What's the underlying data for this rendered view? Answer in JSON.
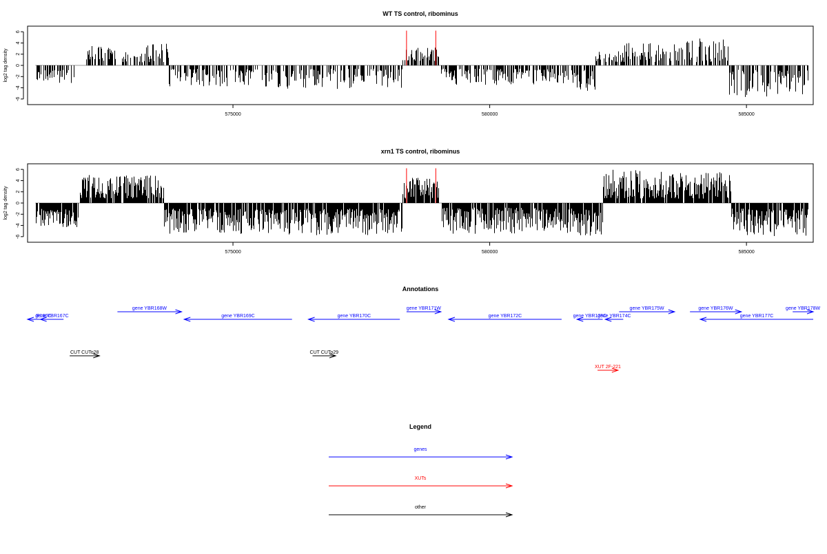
{
  "chart_data": [
    {
      "type": "bar",
      "title": "WT TS control, ribominus",
      "ylabel": "log2 tag density",
      "xlim": [
        571000,
        586300
      ],
      "ylim": [
        -7,
        7
      ],
      "x_ticks": [
        575000,
        580000,
        585000
      ],
      "x_tick_labels": [
        "575000",
        "580000",
        "585000"
      ],
      "y_ticks": [
        -6,
        -4,
        -2,
        0,
        2,
        4,
        6
      ],
      "y_tick_labels": [
        "-6",
        "-4",
        "-2",
        "0",
        "2",
        "4",
        "6"
      ],
      "colors": {
        "bars": "#000000",
        "highlight": "#ff0000",
        "baseline": "#999999"
      },
      "segments": [
        {
          "start": 571150,
          "end": 571900,
          "min": -3.2,
          "max": -0.8
        },
        {
          "start": 572100,
          "end": 572700,
          "min": 0.6,
          "max": 3.5
        },
        {
          "start": 572700,
          "end": 573300,
          "min": 0.5,
          "max": 2.5
        },
        {
          "start": 573300,
          "end": 573750,
          "min": 0.6,
          "max": 4.0
        },
        {
          "start": 573750,
          "end": 575800,
          "min": -3.8,
          "max": -0.6
        },
        {
          "start": 575800,
          "end": 578300,
          "min": -4.2,
          "max": -0.6
        },
        {
          "start": 578300,
          "end": 579000,
          "min": 0.6,
          "max": 3.2
        },
        {
          "start": 579050,
          "end": 581300,
          "min": -3.5,
          "max": -0.6
        },
        {
          "start": 581300,
          "end": 582050,
          "min": -4.8,
          "max": -0.8
        },
        {
          "start": 582050,
          "end": 582600,
          "min": 0.6,
          "max": 2.6
        },
        {
          "start": 582600,
          "end": 583800,
          "min": 0.6,
          "max": 4.0
        },
        {
          "start": 583800,
          "end": 584650,
          "min": 0.6,
          "max": 4.8
        },
        {
          "start": 584650,
          "end": 586200,
          "min": -5.8,
          "max": -0.8
        }
      ],
      "highlight_bars": [
        {
          "x": 578380,
          "y": 6.2
        },
        {
          "x": 578950,
          "y": 6.2
        }
      ]
    },
    {
      "type": "bar",
      "title": "xrn1 TS control, ribominus",
      "ylabel": "log2 tag density",
      "xlim": [
        571000,
        586300
      ],
      "ylim": [
        -7,
        7
      ],
      "x_ticks": [
        575000,
        580000,
        585000
      ],
      "x_tick_labels": [
        "575000",
        "580000",
        "585000"
      ],
      "y_ticks": [
        -6,
        -4,
        -2,
        0,
        2,
        4,
        6
      ],
      "y_tick_labels": [
        "-6",
        "-4",
        "-2",
        "0",
        "2",
        "4",
        "6"
      ],
      "colors": {
        "bars": "#000000",
        "highlight": "#ff0000",
        "baseline": "#999999"
      },
      "segments": [
        {
          "start": 571150,
          "end": 572000,
          "min": -4.5,
          "max": -1.0
        },
        {
          "start": 572000,
          "end": 573650,
          "min": 0.8,
          "max": 5.0
        },
        {
          "start": 573650,
          "end": 576000,
          "min": -5.5,
          "max": -1.0
        },
        {
          "start": 576000,
          "end": 578300,
          "min": -5.8,
          "max": -1.0
        },
        {
          "start": 578300,
          "end": 579000,
          "min": 0.8,
          "max": 4.5
        },
        {
          "start": 579050,
          "end": 581700,
          "min": -5.5,
          "max": -0.8
        },
        {
          "start": 581700,
          "end": 582200,
          "min": -6.0,
          "max": -1.0
        },
        {
          "start": 582200,
          "end": 583500,
          "min": 0.8,
          "max": 6.0
        },
        {
          "start": 583500,
          "end": 584700,
          "min": 0.8,
          "max": 5.5
        },
        {
          "start": 584700,
          "end": 586200,
          "min": -6.0,
          "max": -1.0
        }
      ],
      "highlight_bars": [
        {
          "x": 578380,
          "y": 6.2
        },
        {
          "x": 578950,
          "y": 6.2
        }
      ]
    },
    {
      "type": "annotation-track",
      "title": "Annotations",
      "xlim": [
        571000,
        586300
      ],
      "colors": {
        "gene": "#0000ff",
        "xut": "#ff0000",
        "other": "#000000"
      },
      "features": [
        {
          "label": "R166C",
          "kind": "gene",
          "start": 571000,
          "end": 571630,
          "strand": "-",
          "row": 1
        },
        {
          "label": "gene YBR167C",
          "kind": "gene",
          "start": 571250,
          "end": 571700,
          "strand": "-",
          "row": 1
        },
        {
          "label": "gene YBR168W",
          "kind": "gene",
          "start": 572750,
          "end": 574000,
          "strand": "+",
          "row": 0
        },
        {
          "label": "gene YBR169C",
          "kind": "gene",
          "start": 574050,
          "end": 576150,
          "strand": "-",
          "row": 1
        },
        {
          "label": "gene YBR170C",
          "kind": "gene",
          "start": 576470,
          "end": 578250,
          "strand": "-",
          "row": 1
        },
        {
          "label": "gene YBR171W",
          "kind": "gene",
          "start": 578380,
          "end": 579050,
          "strand": "+",
          "row": 0
        },
        {
          "label": "gene YBR172C",
          "kind": "gene",
          "start": 579200,
          "end": 581400,
          "strand": "-",
          "row": 1
        },
        {
          "label": "gene YBR173C",
          "kind": "gene",
          "start": 581700,
          "end": 582200,
          "strand": "-",
          "row": 1
        },
        {
          "label": "gene YBR174C",
          "kind": "gene",
          "start": 582250,
          "end": 582600,
          "strand": "-",
          "row": 1
        },
        {
          "label": "gene YBR175W",
          "kind": "gene",
          "start": 582520,
          "end": 583600,
          "strand": "+",
          "row": 0
        },
        {
          "label": "gene YBR176W",
          "kind": "gene",
          "start": 583900,
          "end": 584900,
          "strand": "+",
          "row": 0
        },
        {
          "label": "gene YBR177C",
          "kind": "gene",
          "start": 584100,
          "end": 586300,
          "strand": "-",
          "row": 1
        },
        {
          "label": "gene YBR178W",
          "kind": "gene",
          "start": 585900,
          "end": 586300,
          "strand": "+",
          "row": 0
        },
        {
          "label": "CUT CUTo28",
          "kind": "other",
          "start": 571820,
          "end": 572400,
          "strand": "+",
          "row": 2
        },
        {
          "label": "CUT CUTo29",
          "kind": "other",
          "start": 576550,
          "end": 577000,
          "strand": "+",
          "row": 2
        },
        {
          "label": "XUT 2F-221",
          "kind": "xut",
          "start": 582100,
          "end": 582500,
          "strand": "+",
          "row": 3
        }
      ]
    },
    {
      "type": "legend",
      "title": "Legend",
      "entries": [
        {
          "label": "genes",
          "color": "#0000ff"
        },
        {
          "label": "XUTs",
          "color": "#ff0000"
        },
        {
          "label": "other",
          "color": "#000000"
        }
      ]
    }
  ]
}
